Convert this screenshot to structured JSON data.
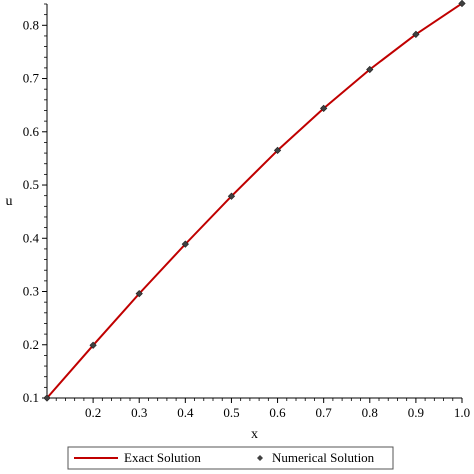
{
  "chart_data": {
    "type": "line",
    "xlabel": "x",
    "ylabel": "u",
    "xlim": [
      0.1,
      1.0
    ],
    "ylim": [
      0.1,
      0.84
    ],
    "x_ticks": [
      "0.2",
      "0.3",
      "0.4",
      "0.5",
      "0.6",
      "0.7",
      "0.8",
      "0.9",
      "1.0"
    ],
    "y_ticks": [
      "0.1",
      "0.2",
      "0.3",
      "0.4",
      "0.5",
      "0.6",
      "0.7",
      "0.8"
    ],
    "grid": false,
    "legend_position": "bottom",
    "series": [
      {
        "name": "Exact Solution",
        "kind": "line",
        "color": "#c00000",
        "x": [
          0.1,
          0.2,
          0.3,
          0.4,
          0.5,
          0.6,
          0.7,
          0.8,
          0.9,
          1.0
        ],
        "values": [
          0.1,
          0.199,
          0.296,
          0.389,
          0.479,
          0.565,
          0.644,
          0.717,
          0.783,
          0.841
        ]
      },
      {
        "name": "Numerical Solution",
        "kind": "points",
        "color": "#404040",
        "x": [
          0.1,
          0.2,
          0.3,
          0.4,
          0.5,
          0.6,
          0.7,
          0.8,
          0.9,
          1.0
        ],
        "values": [
          0.1,
          0.199,
          0.296,
          0.389,
          0.479,
          0.565,
          0.644,
          0.717,
          0.783,
          0.841
        ]
      }
    ]
  }
}
